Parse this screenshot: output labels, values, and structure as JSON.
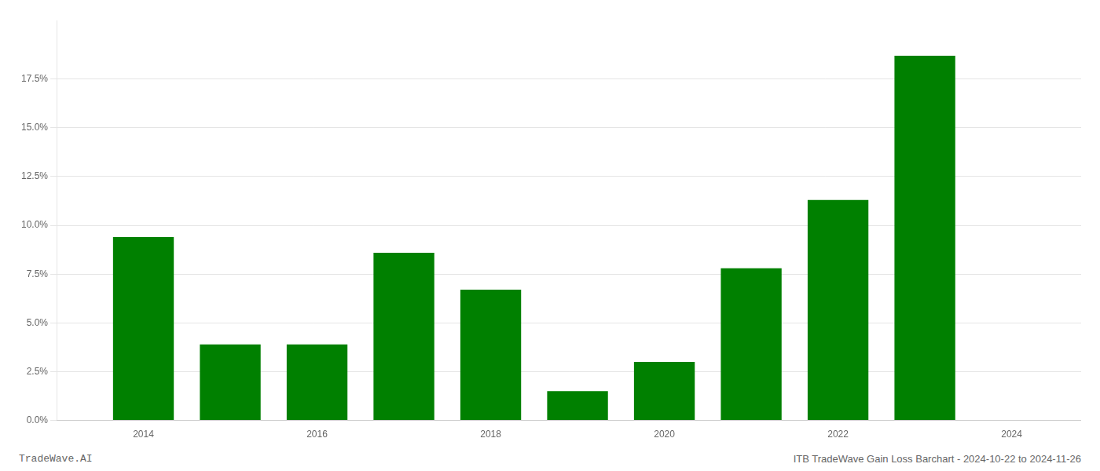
{
  "chart_data": {
    "type": "bar",
    "x": [
      2014,
      2015,
      2016,
      2017,
      2018,
      2019,
      2020,
      2021,
      2022,
      2023
    ],
    "values": [
      0.094,
      0.039,
      0.039,
      0.086,
      0.067,
      0.015,
      0.03,
      0.078,
      0.113,
      0.187
    ],
    "color": "#008000",
    "xlim": [
      2013.0,
      2024.8
    ],
    "xticks": [
      2014,
      2016,
      2018,
      2020,
      2022,
      2024
    ],
    "ylim": [
      0,
      0.205
    ],
    "yticks": [
      {
        "value": 0.0,
        "label": "0.0%"
      },
      {
        "value": 0.025,
        "label": "2.5%"
      },
      {
        "value": 0.05,
        "label": "5.0%"
      },
      {
        "value": 0.075,
        "label": "7.5%"
      },
      {
        "value": 0.1,
        "label": "10.0%"
      },
      {
        "value": 0.125,
        "label": "12.5%"
      },
      {
        "value": 0.15,
        "label": "15.0%"
      },
      {
        "value": 0.175,
        "label": "17.5%"
      }
    ],
    "grid": true,
    "annotations": [
      "TradeWave.AI",
      "ITB TradeWave Gain Loss Barchart - 2024-10-22 to 2024-11-26"
    ]
  }
}
